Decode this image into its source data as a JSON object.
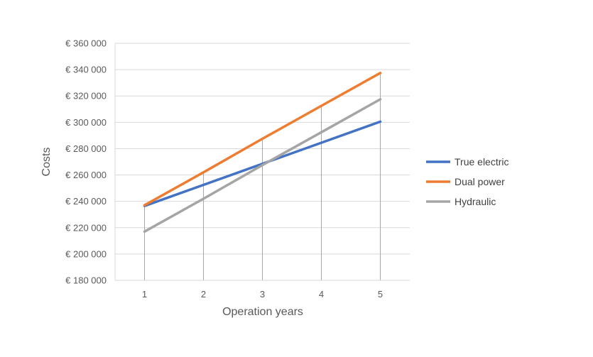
{
  "chart_data": {
    "type": "line",
    "title": "",
    "xlabel": "Operation years",
    "ylabel": "Costs",
    "x": [
      1,
      2,
      3,
      4,
      5
    ],
    "x_tick_labels": [
      "1",
      "2",
      "3",
      "4",
      "5"
    ],
    "ylim": [
      180000,
      360000
    ],
    "y_ticks": [
      180000,
      200000,
      220000,
      240000,
      260000,
      280000,
      300000,
      320000,
      340000,
      360000
    ],
    "y_tick_labels": [
      "€ 180 000",
      "€ 200 000",
      "€ 220 000",
      "€ 240 000",
      "€ 260 000",
      "€ 280 000",
      "€ 300 000",
      "€ 320 000",
      "€ 340 000",
      "€ 360 000"
    ],
    "grid": "horizontal",
    "drop_lines": true,
    "legend_position": "right",
    "series": [
      {
        "name": "True electric",
        "color": "#4472C4",
        "values": [
          236500,
          252500,
          268500,
          284500,
          300500
        ]
      },
      {
        "name": "Dual power",
        "color": "#ED7D31",
        "values": [
          237000,
          262000,
          287500,
          312500,
          337500
        ]
      },
      {
        "name": "Hydraulic",
        "color": "#A5A5A5",
        "values": [
          217000,
          242000,
          267500,
          292500,
          317500
        ]
      }
    ]
  }
}
